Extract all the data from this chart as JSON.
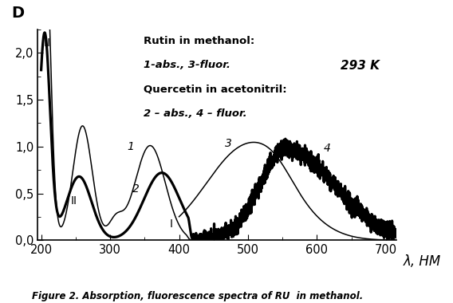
{
  "title": "Figure 2. Absorption, fluorescence spectra of RU  in methanol.",
  "ylabel": "D",
  "xlabel": "λ, HM",
  "xlim": [
    195,
    715
  ],
  "ylim": [
    0.0,
    2.25
  ],
  "yticks": [
    0.0,
    0.5,
    1.0,
    1.5,
    2.0
  ],
  "ytick_labels": [
    "0,0",
    "0,5",
    "1,0",
    "1,5",
    "2,0"
  ],
  "xticks": [
    200,
    300,
    400,
    500,
    600,
    700
  ],
  "temp_label": "293 K",
  "background_color": "#ffffff"
}
